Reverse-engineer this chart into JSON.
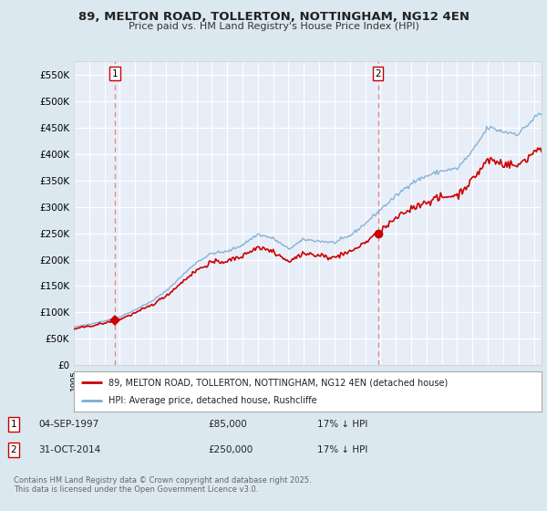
{
  "title": "89, MELTON ROAD, TOLLERTON, NOTTINGHAM, NG12 4EN",
  "subtitle": "Price paid vs. HM Land Registry's House Price Index (HPI)",
  "ylim": [
    0,
    575000
  ],
  "yticks": [
    0,
    50000,
    100000,
    150000,
    200000,
    250000,
    300000,
    350000,
    400000,
    450000,
    500000,
    550000
  ],
  "xlim_start": 1995.0,
  "xlim_end": 2025.5,
  "sale1_date": 1997.67,
  "sale1_price": 85000,
  "sale2_date": 2014.83,
  "sale2_price": 250000,
  "legend_property": "89, MELTON ROAD, TOLLERTON, NOTTINGHAM, NG12 4EN (detached house)",
  "legend_hpi": "HPI: Average price, detached house, Rushcliffe",
  "note1_date": "04-SEP-1997",
  "note1_price": "£85,000",
  "note1_hpi": "17% ↓ HPI",
  "note2_date": "31-OCT-2014",
  "note2_price": "£250,000",
  "note2_hpi": "17% ↓ HPI",
  "copyright": "Contains HM Land Registry data © Crown copyright and database right 2025.\nThis data is licensed under the Open Government Licence v3.0.",
  "property_line_color": "#cc0000",
  "hpi_line_color": "#7aadd4",
  "background_color": "#dce8f0",
  "plot_bg_color": "#e8eef8",
  "grid_color": "#ffffff",
  "sale_marker_color": "#cc0000",
  "vline_color": "#e88888"
}
